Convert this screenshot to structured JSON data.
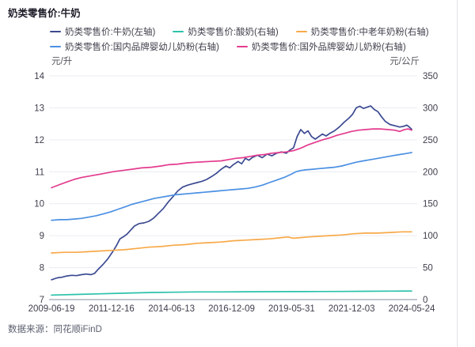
{
  "page": {
    "title": "奶类零售价:牛奶",
    "source": "数据来源：同花顺iFinD"
  },
  "chart_data": {
    "type": "line",
    "title": "奶类零售价:牛奶",
    "grid": true,
    "legend_position": "top",
    "x_axis": {
      "tick_labels": [
        "2009-06-19",
        "2011-12-16",
        "2014-06-13",
        "2016-12-09",
        "2019-05-31",
        "2021-12-03",
        "2024-05-24"
      ],
      "range_years": [
        2009.46,
        2024.4
      ]
    },
    "left_axis": {
      "unit": "元/升",
      "min": 7,
      "max": 14,
      "ticks": [
        14,
        13,
        12,
        11,
        10,
        9,
        8,
        7
      ]
    },
    "right_axis": {
      "unit": "元/公斤",
      "min": 0,
      "max": 350,
      "ticks": [
        350,
        300,
        250,
        200,
        150,
        100,
        50,
        0
      ]
    },
    "series": [
      {
        "name": "奶类零售价:牛奶(左轴)",
        "axis": "left",
        "color": "#3b4a91",
        "points": [
          [
            2009.46,
            7.62
          ],
          [
            2009.7,
            7.68
          ],
          [
            2009.9,
            7.7
          ],
          [
            2010.1,
            7.74
          ],
          [
            2010.3,
            7.76
          ],
          [
            2010.5,
            7.75
          ],
          [
            2010.7,
            7.78
          ],
          [
            2010.9,
            7.8
          ],
          [
            2011.1,
            7.78
          ],
          [
            2011.25,
            7.82
          ],
          [
            2011.4,
            7.95
          ],
          [
            2011.6,
            8.1
          ],
          [
            2011.8,
            8.28
          ],
          [
            2012.0,
            8.5
          ],
          [
            2012.15,
            8.68
          ],
          [
            2012.3,
            8.9
          ],
          [
            2012.45,
            8.97
          ],
          [
            2012.6,
            9.05
          ],
          [
            2012.75,
            9.18
          ],
          [
            2012.9,
            9.3
          ],
          [
            2013.1,
            9.38
          ],
          [
            2013.3,
            9.4
          ],
          [
            2013.5,
            9.45
          ],
          [
            2013.7,
            9.55
          ],
          [
            2013.9,
            9.7
          ],
          [
            2014.1,
            9.85
          ],
          [
            2014.3,
            10.05
          ],
          [
            2014.5,
            10.22
          ],
          [
            2014.7,
            10.4
          ],
          [
            2014.9,
            10.52
          ],
          [
            2015.1,
            10.58
          ],
          [
            2015.3,
            10.62
          ],
          [
            2015.5,
            10.66
          ],
          [
            2015.7,
            10.7
          ],
          [
            2015.9,
            10.76
          ],
          [
            2016.1,
            10.85
          ],
          [
            2016.3,
            10.95
          ],
          [
            2016.5,
            11.08
          ],
          [
            2016.7,
            11.18
          ],
          [
            2016.85,
            11.12
          ],
          [
            2017.0,
            11.22
          ],
          [
            2017.2,
            11.32
          ],
          [
            2017.35,
            11.25
          ],
          [
            2017.5,
            11.42
          ],
          [
            2017.65,
            11.36
          ],
          [
            2017.8,
            11.45
          ],
          [
            2018.0,
            11.52
          ],
          [
            2018.2,
            11.44
          ],
          [
            2018.4,
            11.55
          ],
          [
            2018.6,
            11.5
          ],
          [
            2018.8,
            11.58
          ],
          [
            2019.0,
            11.62
          ],
          [
            2019.2,
            11.58
          ],
          [
            2019.35,
            11.68
          ],
          [
            2019.5,
            11.75
          ],
          [
            2019.65,
            12.1
          ],
          [
            2019.8,
            12.32
          ],
          [
            2019.95,
            12.2
          ],
          [
            2020.1,
            12.28
          ],
          [
            2020.25,
            12.1
          ],
          [
            2020.4,
            12.02
          ],
          [
            2020.55,
            12.1
          ],
          [
            2020.7,
            12.18
          ],
          [
            2020.85,
            12.12
          ],
          [
            2021.0,
            12.2
          ],
          [
            2021.2,
            12.28
          ],
          [
            2021.4,
            12.4
          ],
          [
            2021.6,
            12.55
          ],
          [
            2021.8,
            12.68
          ],
          [
            2021.95,
            12.8
          ],
          [
            2022.1,
            13.0
          ],
          [
            2022.25,
            13.05
          ],
          [
            2022.4,
            12.98
          ],
          [
            2022.55,
            13.02
          ],
          [
            2022.7,
            13.06
          ],
          [
            2022.85,
            12.95
          ],
          [
            2023.0,
            12.88
          ],
          [
            2023.15,
            12.72
          ],
          [
            2023.3,
            12.58
          ],
          [
            2023.5,
            12.48
          ],
          [
            2023.7,
            12.44
          ],
          [
            2023.9,
            12.4
          ],
          [
            2024.05,
            12.42
          ],
          [
            2024.2,
            12.46
          ],
          [
            2024.3,
            12.4
          ],
          [
            2024.4,
            12.33
          ]
        ]
      },
      {
        "name": "奶类零售价:酸奶(右轴)",
        "axis": "right",
        "color": "#2bc2aa",
        "points": [
          [
            2009.46,
            7
          ],
          [
            2010.5,
            8
          ],
          [
            2011.5,
            9
          ],
          [
            2012.5,
            10
          ],
          [
            2013.5,
            11
          ],
          [
            2014.5,
            11.5
          ],
          [
            2015.5,
            12
          ],
          [
            2016.5,
            12
          ],
          [
            2017.5,
            12.2
          ],
          [
            2018.5,
            12.4
          ],
          [
            2019.5,
            12.5
          ],
          [
            2020.5,
            12.6
          ],
          [
            2021.5,
            12.8
          ],
          [
            2022.5,
            13
          ],
          [
            2023.5,
            13.2
          ],
          [
            2024.4,
            13.3
          ]
        ]
      },
      {
        "name": "奶类零售价:中老年奶粉(右轴)",
        "axis": "right",
        "color": "#f7a949",
        "points": [
          [
            2009.46,
            73
          ],
          [
            2010.0,
            74
          ],
          [
            2010.5,
            74
          ],
          [
            2011.0,
            75
          ],
          [
            2011.5,
            76
          ],
          [
            2012.0,
            77
          ],
          [
            2012.5,
            78
          ],
          [
            2013.0,
            80
          ],
          [
            2013.5,
            82
          ],
          [
            2014.0,
            83
          ],
          [
            2014.5,
            85
          ],
          [
            2015.0,
            86
          ],
          [
            2015.5,
            88
          ],
          [
            2016.0,
            89
          ],
          [
            2016.5,
            90
          ],
          [
            2017.0,
            92
          ],
          [
            2017.5,
            93
          ],
          [
            2018.0,
            94
          ],
          [
            2018.5,
            95
          ],
          [
            2019.0,
            97
          ],
          [
            2019.26,
            98
          ],
          [
            2019.5,
            96
          ],
          [
            2019.8,
            97
          ],
          [
            2020.1,
            98
          ],
          [
            2020.5,
            99
          ],
          [
            2021.0,
            100
          ],
          [
            2021.5,
            101
          ],
          [
            2022.0,
            103
          ],
          [
            2022.5,
            104
          ],
          [
            2023.0,
            104
          ],
          [
            2023.5,
            105
          ],
          [
            2024.0,
            106
          ],
          [
            2024.4,
            106
          ]
        ]
      },
      {
        "name": "奶类零售价:国内品牌婴幼儿奶粉(右轴)",
        "axis": "right",
        "color": "#4a90e2",
        "points": [
          [
            2009.46,
            124
          ],
          [
            2009.8,
            125
          ],
          [
            2010.1,
            125
          ],
          [
            2010.4,
            126
          ],
          [
            2010.7,
            127
          ],
          [
            2011.0,
            129
          ],
          [
            2011.3,
            131
          ],
          [
            2011.6,
            134
          ],
          [
            2011.9,
            137
          ],
          [
            2012.2,
            141
          ],
          [
            2012.5,
            145
          ],
          [
            2012.8,
            149
          ],
          [
            2013.1,
            152
          ],
          [
            2013.4,
            155
          ],
          [
            2013.7,
            158
          ],
          [
            2014.0,
            160
          ],
          [
            2014.3,
            162
          ],
          [
            2014.6,
            164
          ],
          [
            2014.9,
            165
          ],
          [
            2015.2,
            166
          ],
          [
            2015.5,
            167
          ],
          [
            2015.8,
            168
          ],
          [
            2016.1,
            169
          ],
          [
            2016.4,
            170
          ],
          [
            2016.7,
            171
          ],
          [
            2017.0,
            172
          ],
          [
            2017.3,
            173
          ],
          [
            2017.6,
            174
          ],
          [
            2017.9,
            176
          ],
          [
            2018.2,
            179
          ],
          [
            2018.5,
            183
          ],
          [
            2018.8,
            187
          ],
          [
            2019.1,
            191
          ],
          [
            2019.4,
            196
          ],
          [
            2019.6,
            200
          ],
          [
            2019.8,
            202
          ],
          [
            2020.0,
            203
          ],
          [
            2020.3,
            204
          ],
          [
            2020.6,
            205
          ],
          [
            2020.9,
            206
          ],
          [
            2021.2,
            207
          ],
          [
            2021.5,
            209
          ],
          [
            2021.8,
            212
          ],
          [
            2022.1,
            215
          ],
          [
            2022.4,
            217
          ],
          [
            2022.7,
            219
          ],
          [
            2023.0,
            221
          ],
          [
            2023.3,
            223
          ],
          [
            2023.6,
            225
          ],
          [
            2023.9,
            227
          ],
          [
            2024.1,
            228
          ],
          [
            2024.25,
            229
          ],
          [
            2024.4,
            230
          ]
        ]
      },
      {
        "name": "奶类零售价:国外品牌婴幼儿奶粉(右轴)",
        "axis": "right",
        "color": "#e33b8e",
        "points": [
          [
            2009.46,
            175
          ],
          [
            2009.8,
            180
          ],
          [
            2010.1,
            184
          ],
          [
            2010.4,
            188
          ],
          [
            2010.7,
            191
          ],
          [
            2011.0,
            193
          ],
          [
            2011.3,
            195
          ],
          [
            2011.6,
            197
          ],
          [
            2012.0,
            200
          ],
          [
            2012.4,
            202
          ],
          [
            2012.8,
            204
          ],
          [
            2013.2,
            206
          ],
          [
            2013.6,
            207
          ],
          [
            2014.0,
            209
          ],
          [
            2014.3,
            211
          ],
          [
            2014.7,
            212
          ],
          [
            2015.1,
            214
          ],
          [
            2015.5,
            215
          ],
          [
            2016.0,
            216
          ],
          [
            2016.5,
            217
          ],
          [
            2016.8,
            219
          ],
          [
            2017.1,
            221
          ],
          [
            2017.4,
            222
          ],
          [
            2017.7,
            224
          ],
          [
            2018.0,
            226
          ],
          [
            2018.3,
            227
          ],
          [
            2018.6,
            229
          ],
          [
            2018.9,
            230
          ],
          [
            2019.2,
            231
          ],
          [
            2019.5,
            233
          ],
          [
            2019.8,
            237
          ],
          [
            2020.1,
            242
          ],
          [
            2020.4,
            246
          ],
          [
            2020.7,
            250
          ],
          [
            2021.0,
            253
          ],
          [
            2021.3,
            257
          ],
          [
            2021.6,
            260
          ],
          [
            2021.9,
            263
          ],
          [
            2022.2,
            265
          ],
          [
            2022.5,
            266
          ],
          [
            2022.8,
            267
          ],
          [
            2023.1,
            267
          ],
          [
            2023.4,
            266
          ],
          [
            2023.7,
            265
          ],
          [
            2023.9,
            263
          ],
          [
            2024.1,
            266
          ],
          [
            2024.25,
            267
          ],
          [
            2024.4,
            265
          ]
        ]
      }
    ]
  },
  "colors": {
    "gridline": "#e9ecf2",
    "axis_line": "#c2c7d0",
    "tick_label": "#3f3f4c",
    "background": "#ffffff"
  }
}
